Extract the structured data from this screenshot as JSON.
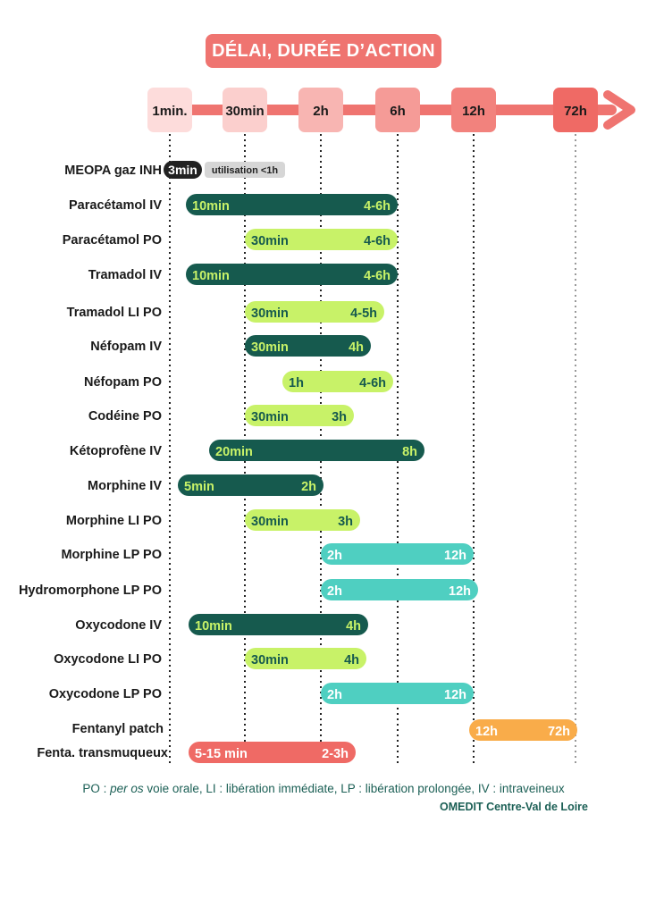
{
  "title": "DÉLAI, DURÉE D’ACTION",
  "chart_data": {
    "type": "gantt",
    "title": "DÉLAI, DURÉE D’ACTION",
    "axis_ticks": [
      {
        "label": "1min.",
        "color": "#fddcdb"
      },
      {
        "label": "30min",
        "color": "#fbcfcd"
      },
      {
        "label": "2h",
        "color": "#f8b5b2"
      },
      {
        "label": "6h",
        "color": "#f59b97"
      },
      {
        "label": "12h",
        "color": "#f2827d"
      },
      {
        "label": "72h",
        "color": "#ef6a65"
      }
    ],
    "arrow_color": "#ef7470",
    "rows": [
      {
        "drug": "MEOPA gaz INH",
        "onset": "3min",
        "duration": "utilisation <1h",
        "kind": "meopa"
      },
      {
        "drug": "Paracétamol IV",
        "onset": "10min",
        "duration": "4-6h",
        "kind": "iv"
      },
      {
        "drug": "Paracétamol PO",
        "onset": "30min",
        "duration": "4-6h",
        "kind": "li"
      },
      {
        "drug": "Tramadol IV",
        "onset": "10min",
        "duration": "4-6h",
        "kind": "iv"
      },
      {
        "drug": "Tramadol LI PO",
        "onset": "30min",
        "duration": "4-5h",
        "kind": "li"
      },
      {
        "drug": "Néfopam IV",
        "onset": "30min",
        "duration": "4h",
        "kind": "iv"
      },
      {
        "drug": "Néfopam PO",
        "onset": "1h",
        "duration": "4-6h",
        "kind": "li"
      },
      {
        "drug": "Codéine PO",
        "onset": "30min",
        "duration": "3h",
        "kind": "li"
      },
      {
        "drug": "Kétoprofène IV",
        "onset": "20min",
        "duration": "8h",
        "kind": "iv"
      },
      {
        "drug": "Morphine IV",
        "onset": "5min",
        "duration": "2h",
        "kind": "iv"
      },
      {
        "drug": "Morphine LI PO",
        "onset": "30min",
        "duration": "3h",
        "kind": "li"
      },
      {
        "drug": "Morphine LP PO",
        "onset": "2h",
        "duration": "12h",
        "kind": "lp"
      },
      {
        "drug": "Hydromorphone LP PO",
        "onset": "2h",
        "duration": "12h",
        "kind": "lp"
      },
      {
        "drug": "Oxycodone IV",
        "onset": "10min",
        "duration": "4h",
        "kind": "iv"
      },
      {
        "drug": "Oxycodone LI PO",
        "onset": "30min",
        "duration": "4h",
        "kind": "li"
      },
      {
        "drug": "Oxycodone LP PO",
        "onset": "2h",
        "duration": "12h",
        "kind": "lp"
      },
      {
        "drug": "Fentanyl patch",
        "onset": "12h",
        "duration": "72h",
        "kind": "patch"
      },
      {
        "drug": "Fenta. transmuqueux",
        "onset": "5-15 min",
        "duration": "2-3h",
        "kind": "tm"
      }
    ],
    "colors": {
      "iv": {
        "fill": "#165a4e",
        "text": "#c8f268"
      },
      "li": {
        "fill": "#c8f268",
        "text": "#165a4e"
      },
      "lp": {
        "fill": "#4fcfc1",
        "text": "#ffffff"
      },
      "patch": {
        "fill": "#f9ac4a",
        "text": "#ffffff"
      },
      "tm": {
        "fill": "#ef6a65",
        "text": "#ffffff"
      },
      "meopa": {
        "fill": "#222222",
        "text": "#ffffff"
      },
      "meopa_tag": {
        "fill": "#d6d6d6",
        "text": "#222222"
      }
    }
  },
  "legend": {
    "part1": "PO : ",
    "part2": "per os",
    "part3": " voie orale, LI : libération immédiate, LP : libération prolongée, IV : intraveineux"
  },
  "credit": "OMEDIT Centre-Val de Loire"
}
